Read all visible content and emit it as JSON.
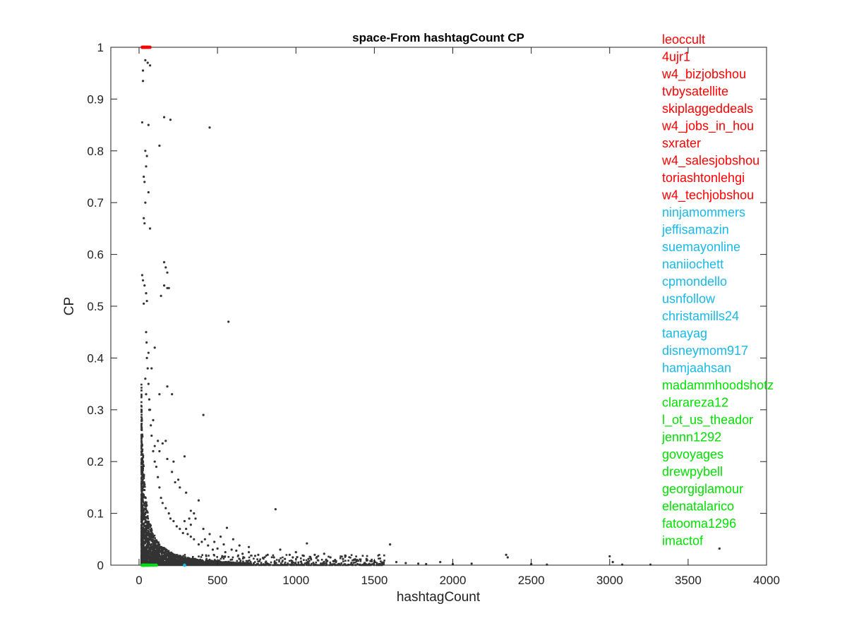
{
  "chart_data": {
    "type": "scatter",
    "title": "space-From hashtagCount CP",
    "xlabel": "hashtagCount",
    "ylabel": "CP",
    "xlim": [
      -180,
      4000
    ],
    "ylim": [
      0,
      1
    ],
    "xticks": [
      0,
      500,
      1000,
      1500,
      2000,
      2500,
      3000,
      3500,
      4000
    ],
    "yticks": [
      0,
      0.1,
      0.2,
      0.3,
      0.4,
      0.5,
      0.6,
      0.7,
      0.8,
      0.9,
      1
    ],
    "xtick_labels": [
      "0",
      "500",
      "1000",
      "1500",
      "2000",
      "2500",
      "3000",
      "3500",
      "4000"
    ],
    "ytick_labels": [
      "0",
      "0.1",
      "0.2",
      "0.3",
      "0.4",
      "0.5",
      "0.6",
      "0.7",
      "0.8",
      "0.9",
      "1"
    ],
    "grid": false,
    "point_color": "#333333",
    "series": [
      {
        "color": "#333333",
        "points": [
          [
            20,
            0.855
          ],
          [
            25,
            0.955
          ],
          [
            25,
            0.935
          ],
          [
            40,
            0.975
          ],
          [
            55,
            0.97
          ],
          [
            60,
            0.85
          ],
          [
            70,
            0.965
          ],
          [
            130,
            0.81
          ],
          [
            160,
            0.865
          ],
          [
            200,
            0.86
          ],
          [
            450,
            0.845
          ],
          [
            40,
            0.8
          ],
          [
            50,
            0.79
          ],
          [
            45,
            0.77
          ],
          [
            30,
            0.75
          ],
          [
            35,
            0.74
          ],
          [
            60,
            0.72
          ],
          [
            40,
            0.7
          ],
          [
            70,
            0.65
          ],
          [
            30,
            0.67
          ],
          [
            35,
            0.66
          ],
          [
            160,
            0.585
          ],
          [
            170,
            0.575
          ],
          [
            180,
            0.565
          ],
          [
            160,
            0.54
          ],
          [
            180,
            0.535
          ],
          [
            190,
            0.535
          ],
          [
            140,
            0.52
          ],
          [
            20,
            0.56
          ],
          [
            25,
            0.55
          ],
          [
            35,
            0.54
          ],
          [
            45,
            0.525
          ],
          [
            50,
            0.51
          ],
          [
            30,
            0.505
          ],
          [
            570,
            0.47
          ],
          [
            100,
            0.42
          ],
          [
            60,
            0.41
          ],
          [
            80,
            0.38
          ],
          [
            40,
            0.36
          ],
          [
            45,
            0.33
          ],
          [
            180,
            0.345
          ],
          [
            210,
            0.33
          ],
          [
            130,
            0.33
          ],
          [
            410,
            0.29
          ],
          [
            65,
            0.3
          ],
          [
            90,
            0.28
          ],
          [
            120,
            0.24
          ],
          [
            150,
            0.235
          ],
          [
            170,
            0.24
          ],
          [
            130,
            0.22
          ],
          [
            100,
            0.23
          ],
          [
            290,
            0.21
          ],
          [
            180,
            0.205
          ],
          [
            220,
            0.2
          ],
          [
            210,
            0.18
          ],
          [
            250,
            0.165
          ],
          [
            230,
            0.16
          ],
          [
            260,
            0.15
          ],
          [
            300,
            0.14
          ],
          [
            380,
            0.125
          ],
          [
            330,
            0.105
          ],
          [
            350,
            0.1
          ],
          [
            320,
            0.09
          ],
          [
            360,
            0.09
          ],
          [
            870,
            0.108
          ],
          [
            290,
            0.085
          ],
          [
            330,
            0.078
          ],
          [
            300,
            0.07
          ],
          [
            410,
            0.07
          ],
          [
            560,
            0.072
          ],
          [
            450,
            0.06
          ],
          [
            520,
            0.055
          ],
          [
            600,
            0.05
          ],
          [
            420,
            0.05
          ],
          [
            480,
            0.045
          ],
          [
            540,
            0.04
          ],
          [
            640,
            0.038
          ],
          [
            700,
            0.035
          ],
          [
            1070,
            0.042
          ],
          [
            1600,
            0.04
          ],
          [
            2340,
            0.02
          ],
          [
            2350,
            0.015
          ],
          [
            3000,
            0.017
          ],
          [
            3700,
            0.032
          ],
          [
            700,
            0.025
          ],
          [
            760,
            0.02
          ],
          [
            820,
            0.02
          ],
          [
            900,
            0.03
          ],
          [
            960,
            0.02
          ],
          [
            1000,
            0.025
          ],
          [
            1050,
            0.018
          ],
          [
            1120,
            0.02
          ],
          [
            1180,
            0.022
          ],
          [
            1220,
            0.015
          ],
          [
            1300,
            0.012
          ],
          [
            1370,
            0.01
          ],
          [
            1450,
            0.012
          ],
          [
            1500,
            0.008
          ],
          [
            1560,
            0.005
          ],
          [
            1640,
            0.006
          ],
          [
            1700,
            0.004
          ],
          [
            1780,
            0.003
          ],
          [
            1830,
            0.002
          ],
          [
            1920,
            0.006
          ],
          [
            2000,
            0.002
          ],
          [
            2120,
            0.003
          ],
          [
            2500,
            0.002
          ],
          [
            2600,
            0.001
          ],
          [
            3080,
            0.001
          ],
          [
            3260,
            0.001
          ],
          [
            3020,
            0.006
          ],
          [
            1130,
            0.014
          ],
          [
            1250,
            0.01
          ],
          [
            1200,
            0.008
          ],
          [
            1080,
            0.012
          ],
          [
            980,
            0.015
          ],
          [
            930,
            0.012
          ],
          [
            860,
            0.015
          ],
          [
            790,
            0.014
          ],
          [
            740,
            0.018
          ],
          [
            660,
            0.022
          ],
          [
            620,
            0.028
          ],
          [
            590,
            0.03
          ],
          [
            550,
            0.025
          ],
          [
            500,
            0.032
          ],
          [
            470,
            0.03
          ],
          [
            440,
            0.038
          ],
          [
            400,
            0.045
          ],
          [
            380,
            0.04
          ],
          [
            350,
            0.05
          ],
          [
            330,
            0.055
          ],
          [
            310,
            0.06
          ],
          [
            280,
            0.062
          ],
          [
            260,
            0.07
          ],
          [
            240,
            0.075
          ],
          [
            220,
            0.085
          ],
          [
            200,
            0.09
          ],
          [
            190,
            0.1
          ],
          [
            170,
            0.11
          ],
          [
            150,
            0.12
          ],
          [
            140,
            0.13
          ],
          [
            130,
            0.15
          ],
          [
            120,
            0.17
          ],
          [
            110,
            0.19
          ],
          [
            100,
            0.2
          ],
          [
            90,
            0.22
          ],
          [
            80,
            0.25
          ],
          [
            75,
            0.27
          ],
          [
            70,
            0.3
          ],
          [
            65,
            0.32
          ],
          [
            60,
            0.35
          ],
          [
            55,
            0.38
          ],
          [
            50,
            0.4
          ],
          [
            48,
            0.43
          ],
          [
            45,
            0.45
          ]
        ]
      },
      {
        "color": "#ff0000",
        "points": [
          [
            25,
            1
          ],
          [
            40,
            1
          ],
          [
            55,
            1
          ],
          [
            70,
            1
          ],
          [
            35,
            1
          ],
          [
            60,
            1
          ],
          [
            20,
            1
          ],
          [
            50,
            1
          ],
          [
            30,
            1
          ],
          [
            45,
            1
          ]
        ]
      },
      {
        "color": "#1ab8e8",
        "points": [
          [
            25,
            0
          ],
          [
            45,
            0
          ],
          [
            65,
            0
          ],
          [
            100,
            0
          ],
          [
            290,
            0
          ],
          [
            35,
            0
          ],
          [
            55,
            0
          ],
          [
            80,
            0
          ],
          [
            30,
            0
          ],
          [
            50,
            0
          ]
        ]
      },
      {
        "color": "#00e000",
        "points": [
          [
            20,
            0
          ],
          [
            30,
            0
          ],
          [
            40,
            0
          ],
          [
            60,
            0
          ],
          [
            90,
            0
          ],
          [
            25,
            0
          ],
          [
            35,
            0
          ],
          [
            50,
            0
          ],
          [
            70,
            0
          ],
          [
            110,
            0
          ]
        ]
      }
    ],
    "legend_placement": "top-right",
    "labels": [
      {
        "text": "leoccult",
        "color": "#ff0000"
      },
      {
        "text": "4ujr1",
        "color": "#ff0000"
      },
      {
        "text": "w4_bizjobshou",
        "color": "#ff0000"
      },
      {
        "text": "tvbysatellite",
        "color": "#ff0000"
      },
      {
        "text": "skiplaggeddeals",
        "color": "#ff0000"
      },
      {
        "text": "w4_jobs_in_hou",
        "color": "#ff0000"
      },
      {
        "text": "sxrater",
        "color": "#ff0000"
      },
      {
        "text": "w4_salesjobshou",
        "color": "#ff0000"
      },
      {
        "text": "toriashtonlehgi",
        "color": "#ff0000"
      },
      {
        "text": "w4_techjobshou",
        "color": "#ff0000"
      },
      {
        "text": "ninjamommers",
        "color": "#1ab8e8"
      },
      {
        "text": "jeffisamazin",
        "color": "#1ab8e8"
      },
      {
        "text": "suemayonline",
        "color": "#1ab8e8"
      },
      {
        "text": "naniiochett",
        "color": "#1ab8e8"
      },
      {
        "text": "cpmondello",
        "color": "#1ab8e8"
      },
      {
        "text": "usnfollow",
        "color": "#1ab8e8"
      },
      {
        "text": "christamills24",
        "color": "#1ab8e8"
      },
      {
        "text": "tanayag",
        "color": "#1ab8e8"
      },
      {
        "text": "disneymom917",
        "color": "#1ab8e8"
      },
      {
        "text": "hamjaahsan",
        "color": "#1ab8e8"
      },
      {
        "text": "madammhoodshotz",
        "color": "#00e000"
      },
      {
        "text": "clarareza12",
        "color": "#00e000"
      },
      {
        "text": "l_ot_us_theador",
        "color": "#00e000"
      },
      {
        "text": "jennn1292",
        "color": "#00e000"
      },
      {
        "text": "govoyages",
        "color": "#00e000"
      },
      {
        "text": "drewpybell",
        "color": "#00e000"
      },
      {
        "text": "georgiglamour",
        "color": "#00e000"
      },
      {
        "text": "elenatalarico",
        "color": "#00e000"
      },
      {
        "text": "fatooma1296",
        "color": "#00e000"
      },
      {
        "text": "imactof",
        "color": "#00e000"
      }
    ]
  }
}
